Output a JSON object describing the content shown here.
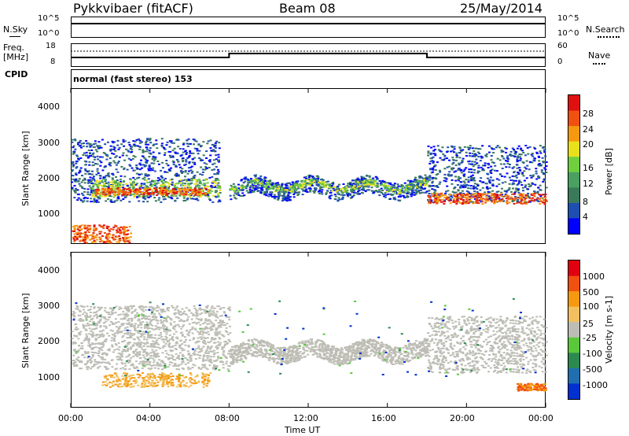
{
  "header": {
    "station": "Pykkvibaer (fitACF)",
    "beam": "Beam 08",
    "date": "25/May/2014"
  },
  "status_panels": {
    "nsky_label": "N.Sky",
    "nsearch_label": "N.Search",
    "nsky_ticks": [
      "10^5",
      "10^0"
    ],
    "nsearch_ticks": [
      "10^5",
      "10^0"
    ],
    "freq_label_1": "Freq.",
    "freq_label_2": "[MHz]",
    "freq_ticks": [
      "18",
      "8"
    ],
    "nave_label": "Nave",
    "nave_ticks": [
      "60",
      "0"
    ],
    "cpid_label": "CPID",
    "cpid_text": "normal (fast stereo) 153"
  },
  "chart_data": [
    {
      "type": "heatmap",
      "name": "power",
      "ylabel": "Slant Range [km]",
      "yticks": [
        "4000",
        "3000",
        "2000",
        "1000"
      ],
      "ylim": [
        200,
        4600
      ],
      "xlim": [
        0,
        24
      ],
      "colorbar_label": "Power [dB]",
      "colorbar_ticks": [
        "28",
        "24",
        "20",
        "16",
        "12",
        "8",
        "4"
      ],
      "colorbar_colors": [
        "#0000ff",
        "#1e4fb0",
        "#3a7a5a",
        "#4aa060",
        "#6fcf3f",
        "#e8e01a",
        "#f59a10",
        "#f05010",
        "#e01010"
      ]
    },
    {
      "type": "heatmap",
      "name": "velocity",
      "ylabel": "Slant Range [km]",
      "yticks": [
        "4000",
        "3000",
        "2000",
        "1000"
      ],
      "ylim": [
        200,
        4600
      ],
      "xlim": [
        0,
        24
      ],
      "xlabel": "Time UT",
      "xticks": [
        "00:00",
        "04:00",
        "08:00",
        "12:00",
        "16:00",
        "20:00",
        "00:00"
      ],
      "colorbar_label": "Velocity [m s-1]",
      "colorbar_ticks": [
        "1000",
        "500",
        "100",
        "25",
        "-25",
        "-100",
        "-500",
        "-1000"
      ],
      "colorbar_colors": [
        "#0030d0",
        "#1f6fb0",
        "#2a8a50",
        "#5ac83a",
        "#bdbdb5",
        "#f2c060",
        "#f59a10",
        "#f05010",
        "#e00010"
      ]
    }
  ]
}
